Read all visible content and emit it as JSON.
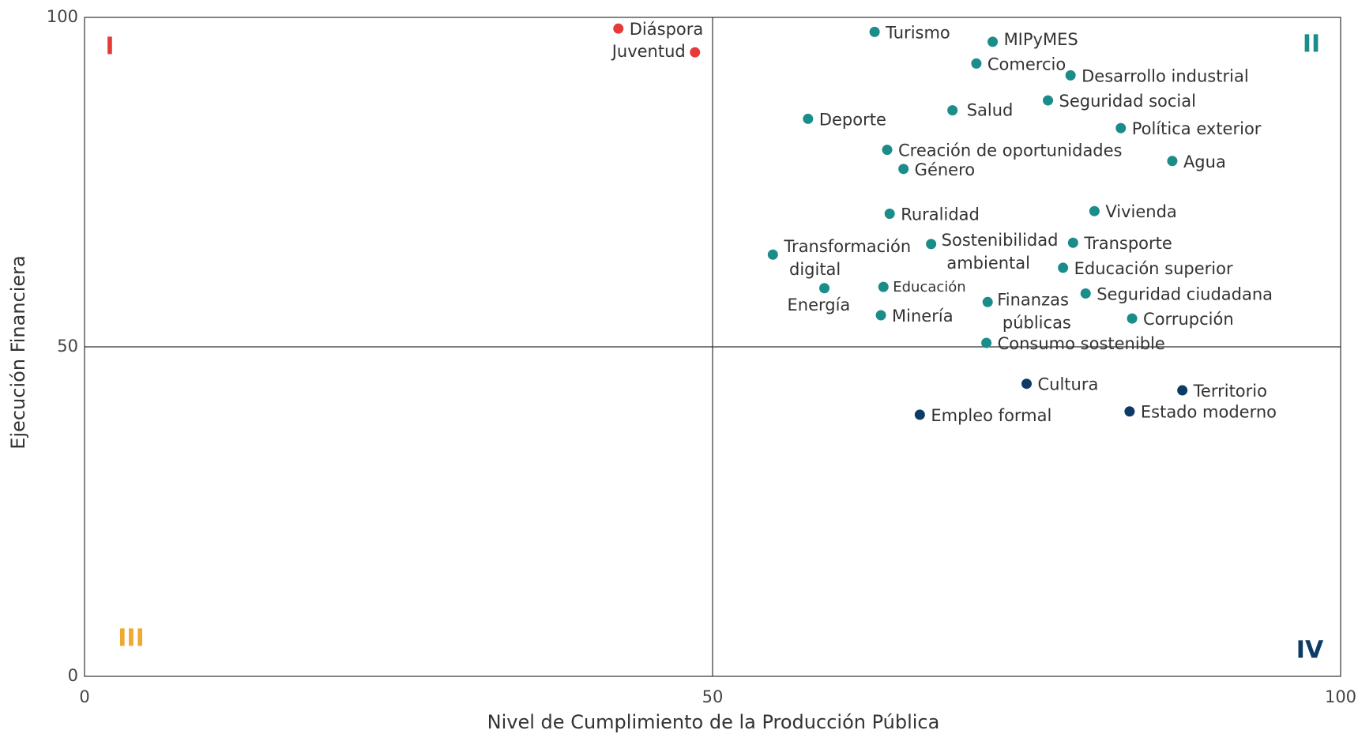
{
  "chart_data": {
    "type": "scatter",
    "xlabel": "Nivel de Cumplimiento de la Producción Pública",
    "ylabel": "Ejecución Financiera",
    "xlim": [
      0,
      100
    ],
    "xticks": [
      0,
      50,
      100
    ],
    "ylim": [
      0,
      100
    ],
    "yticks": [
      0,
      50,
      100
    ],
    "quadrants": [
      {
        "label": "I",
        "color": "#e63a3a"
      },
      {
        "label": "II",
        "color": "#1a8c8a"
      },
      {
        "label": "III",
        "color": "#f0a830"
      },
      {
        "label": "IV",
        "color": "#0d3b66"
      }
    ],
    "series": [
      {
        "color": "#e63a3a",
        "labels": [
          "Diáspora",
          "Juventud"
        ],
        "x": [
          42.5,
          48.6
        ],
        "values": [
          98.3,
          94.7
        ]
      },
      {
        "color": "#1a8c8a",
        "labels": [
          "Turismo",
          "MIPyMES",
          "Comercio",
          "Desarrollo industrial",
          "Seguridad social",
          "Deporte",
          "Salud",
          "Política exterior",
          "Creación de oportunidades",
          "Agua",
          "Género",
          "Ruralidad",
          "Vivienda",
          "Transformación digital",
          "Sostenibilidad ambiental",
          "Transporte",
          "Educación superior",
          "Energía",
          "Educación",
          "Seguridad ciudadana",
          "Finanzas públicas",
          "Minería",
          "Corrupción",
          "Consumo sostenible"
        ],
        "x": [
          62.9,
          72.3,
          71.0,
          78.5,
          76.7,
          57.6,
          69.1,
          82.5,
          63.9,
          86.6,
          65.2,
          64.1,
          80.4,
          54.8,
          67.4,
          78.7,
          77.9,
          58.9,
          63.6,
          79.7,
          71.9,
          63.4,
          83.4,
          71.8
        ],
        "values": [
          97.8,
          96.3,
          93.0,
          91.2,
          87.4,
          84.6,
          85.9,
          83.2,
          79.9,
          78.2,
          77.0,
          70.2,
          70.6,
          64.0,
          65.6,
          65.8,
          62.0,
          58.9,
          59.1,
          58.1,
          56.8,
          54.8,
          54.3,
          50.6
        ]
      },
      {
        "color": "#0d3b66",
        "labels": [
          "Cultura",
          "Territorio",
          "Estado moderno",
          "Empleo formal"
        ],
        "x": [
          75.0,
          87.4,
          83.2,
          66.5
        ],
        "values": [
          44.4,
          43.4,
          40.2,
          39.7
        ]
      }
    ]
  }
}
